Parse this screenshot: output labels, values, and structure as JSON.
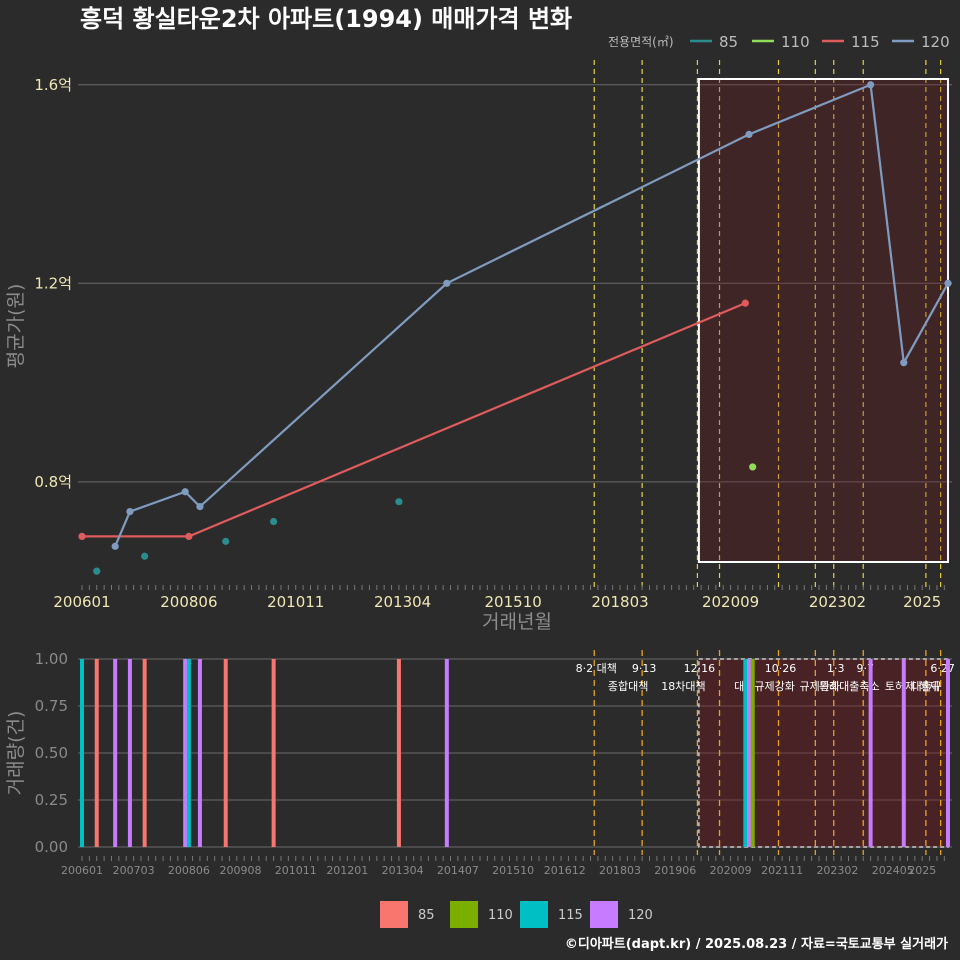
{
  "title": "흥덕 황실타운2차 아파트(1994) 매매가격 변화",
  "caption": "©디아파트(dapt.kr) / 2025.08.23 / 자료=국토교통부 실거래가",
  "legend": {
    "title": "전용면적(㎡)",
    "items": [
      {
        "label": "85",
        "color": "#2a8c8c"
      },
      {
        "label": "110",
        "color": "#8fdc5a"
      },
      {
        "label": "115",
        "color": "#e05b5b"
      },
      {
        "label": "120",
        "color": "#7f9cc0"
      }
    ]
  },
  "bottom_legend": {
    "items": [
      {
        "label": "85",
        "color": "#f8766d"
      },
      {
        "label": "110",
        "color": "#7cae00"
      },
      {
        "label": "115",
        "color": "#00bfc4"
      },
      {
        "label": "120",
        "color": "#c77cff"
      }
    ]
  },
  "chart_data": [
    {
      "type": "line",
      "xlabel": "거래년월",
      "ylabel": "평균가(원)",
      "x_range": [
        "2006-01",
        "2025-08"
      ],
      "ylim": [
        0.58,
        1.66
      ],
      "x_ticks": [
        "200601",
        "200806",
        "201011",
        "201304",
        "201510",
        "201803",
        "202009",
        "202302",
        "2025"
      ],
      "y_ticks": [
        {
          "value": 0.8,
          "label": "0.8억"
        },
        {
          "value": 1.2,
          "label": "1.2억"
        },
        {
          "value": 1.6,
          "label": "1.6억"
        }
      ],
      "series": [
        {
          "name": "85",
          "mode": "points",
          "color": "#2a8c8c",
          "points": [
            [
              "2006-05",
              0.62
            ],
            [
              "2007-06",
              0.65
            ],
            [
              "2009-04",
              0.68
            ],
            [
              "2010-05",
              0.72
            ],
            [
              "2013-03",
              0.76
            ]
          ]
        },
        {
          "name": "110",
          "mode": "points",
          "color": "#8fdc5a",
          "points": [
            [
              "2021-03",
              0.83
            ]
          ]
        },
        {
          "name": "115",
          "mode": "line",
          "color": "#e05b5b",
          "points": [
            [
              "2006-01",
              0.69
            ],
            [
              "2008-06",
              0.69
            ],
            [
              "2021-01",
              1.16
            ]
          ]
        },
        {
          "name": "120",
          "mode": "line",
          "color": "#7f9cc0",
          "points": [
            [
              "2006-10",
              0.67
            ],
            [
              "2007-02",
              0.74
            ],
            [
              "2008-05",
              0.78
            ],
            [
              "2008-09",
              0.75
            ],
            [
              "2014-04",
              1.2
            ],
            [
              "2021-02",
              1.5
            ],
            [
              "2023-11",
              1.6
            ],
            [
              "2024-08",
              1.04
            ],
            [
              "2025-08",
              1.2
            ]
          ]
        }
      ]
    },
    {
      "type": "bar",
      "ylabel": "거래량(건)",
      "ylim": [
        0,
        1
      ],
      "y_ticks": [
        "0.00",
        "0.25",
        "0.50",
        "0.75",
        "1.00"
      ],
      "x_ticks": [
        "200601",
        "200703",
        "200806",
        "200908",
        "201011",
        "201201",
        "201304",
        "201407",
        "201510",
        "201612",
        "201803",
        "201906",
        "202009",
        "202111",
        "202302",
        "202405",
        "2025"
      ],
      "bars": [
        {
          "date": "2006-01",
          "series": "115",
          "value": 1
        },
        {
          "date": "2006-05",
          "series": "85",
          "value": 1
        },
        {
          "date": "2006-10",
          "series": "120",
          "value": 1
        },
        {
          "date": "2007-02",
          "series": "120",
          "value": 1
        },
        {
          "date": "2007-06",
          "series": "85",
          "value": 1
        },
        {
          "date": "2008-05",
          "series": "120",
          "value": 1
        },
        {
          "date": "2008-06",
          "series": "115",
          "value": 1
        },
        {
          "date": "2008-09",
          "series": "120",
          "value": 1
        },
        {
          "date": "2009-04",
          "series": "85",
          "value": 1
        },
        {
          "date": "2010-05",
          "series": "85",
          "value": 1
        },
        {
          "date": "2013-03",
          "series": "85",
          "value": 1
        },
        {
          "date": "2014-04",
          "series": "120",
          "value": 1
        },
        {
          "date": "2021-01",
          "series": "115",
          "value": 1
        },
        {
          "date": "2021-02",
          "series": "120",
          "value": 1
        },
        {
          "date": "2021-03",
          "series": "110",
          "value": 1
        },
        {
          "date": "2023-11",
          "series": "120",
          "value": 1
        },
        {
          "date": "2024-08",
          "series": "120",
          "value": 1
        },
        {
          "date": "2025-08",
          "series": "120",
          "value": 1
        }
      ]
    }
  ],
  "policies": [
    {
      "date": "2017-08",
      "line1": "8·2 대책",
      "line2": ""
    },
    {
      "date": "2018-09",
      "line1": "9·13",
      "line2": "종합대책"
    },
    {
      "date": "2019-12",
      "line1": "12·16",
      "line2": "18차대책"
    },
    {
      "date": "2020-06",
      "line1": "",
      "line2": ""
    },
    {
      "date": "2021-10",
      "line1": "10·26",
      "line2": "대출규제강화"
    },
    {
      "date": "2022-08",
      "line1": "",
      "line2": ""
    },
    {
      "date": "2023-01",
      "line1": "1·3",
      "line2": "규제완화"
    },
    {
      "date": "2023-09",
      "line1": "9·7",
      "line2": "특례대출축소"
    },
    {
      "date": "2025-02",
      "line1": "",
      "line2": "토허제 해제"
    },
    {
      "date": "2025-06",
      "line1": "6·27",
      "line2": "대출규"
    }
  ],
  "highlight": {
    "from": "2020-08",
    "to": "2025-08"
  }
}
